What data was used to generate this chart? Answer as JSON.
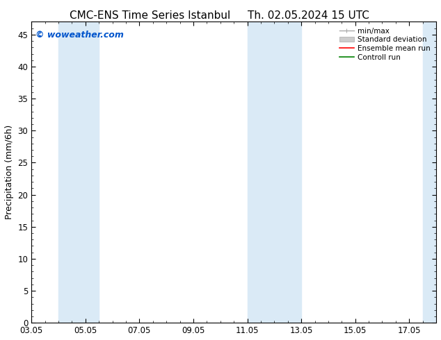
{
  "title_left": "CMC-ENS Time Series Istanbul",
  "title_right": "Th. 02.05.2024 15 UTC",
  "ylabel": "Precipitation (mm/6h)",
  "watermark": "© woweather.com",
  "watermark_color": "#0055cc",
  "ylim": [
    0,
    47
  ],
  "yticks": [
    0,
    5,
    10,
    15,
    20,
    25,
    30,
    35,
    40,
    45
  ],
  "xtick_labels": [
    "03.05",
    "05.05",
    "07.05",
    "09.05",
    "11.05",
    "13.05",
    "15.05",
    "17.05"
  ],
  "xtick_positions": [
    0,
    2,
    4,
    6,
    8,
    10,
    12,
    14
  ],
  "x_min": 0,
  "x_max": 15.0,
  "background_color": "#ffffff",
  "plot_bg_color": "#ffffff",
  "shade_bands": [
    [
      1.0,
      1.75
    ],
    [
      1.75,
      2.5
    ],
    [
      8.0,
      8.75
    ],
    [
      8.75,
      10.0
    ],
    [
      14.5,
      15.0
    ]
  ],
  "shade_color": "#daeaf6",
  "title_fontsize": 11,
  "axis_fontsize": 9,
  "tick_fontsize": 8.5,
  "watermark_fontsize": 9
}
